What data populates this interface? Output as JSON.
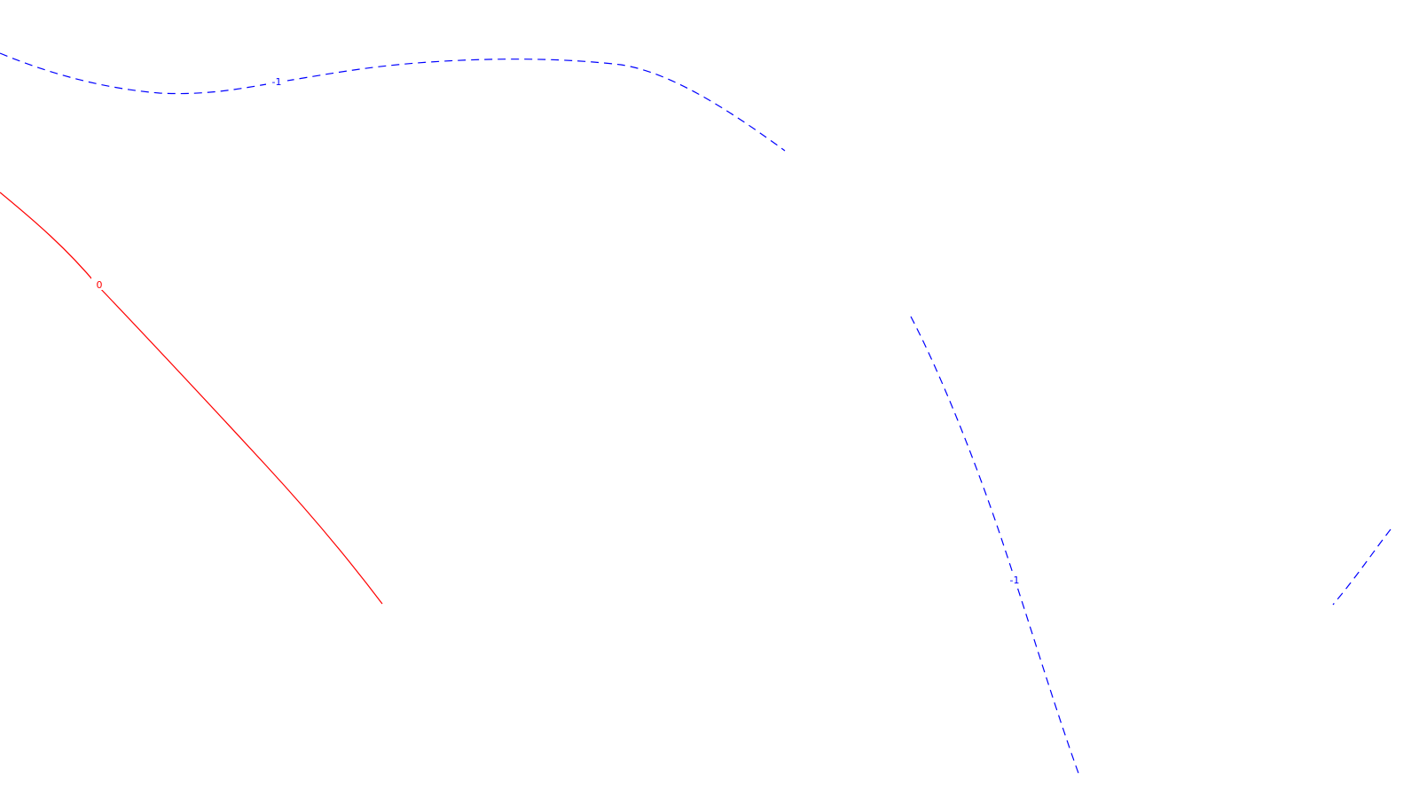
{
  "contours": [
    {
      "id": "contour-neg1-top",
      "level_label": "-1",
      "color": "#0000ff",
      "style": "dashed"
    },
    {
      "id": "contour-zero",
      "level_label": "0",
      "color": "#ff0000",
      "style": "solid"
    },
    {
      "id": "contour-neg1-mid",
      "level_label": "-1",
      "color": "#0000ff",
      "style": "dashed"
    },
    {
      "id": "contour-neg1-right",
      "level_label": "",
      "color": "#0000ff",
      "style": "dashed"
    }
  ]
}
